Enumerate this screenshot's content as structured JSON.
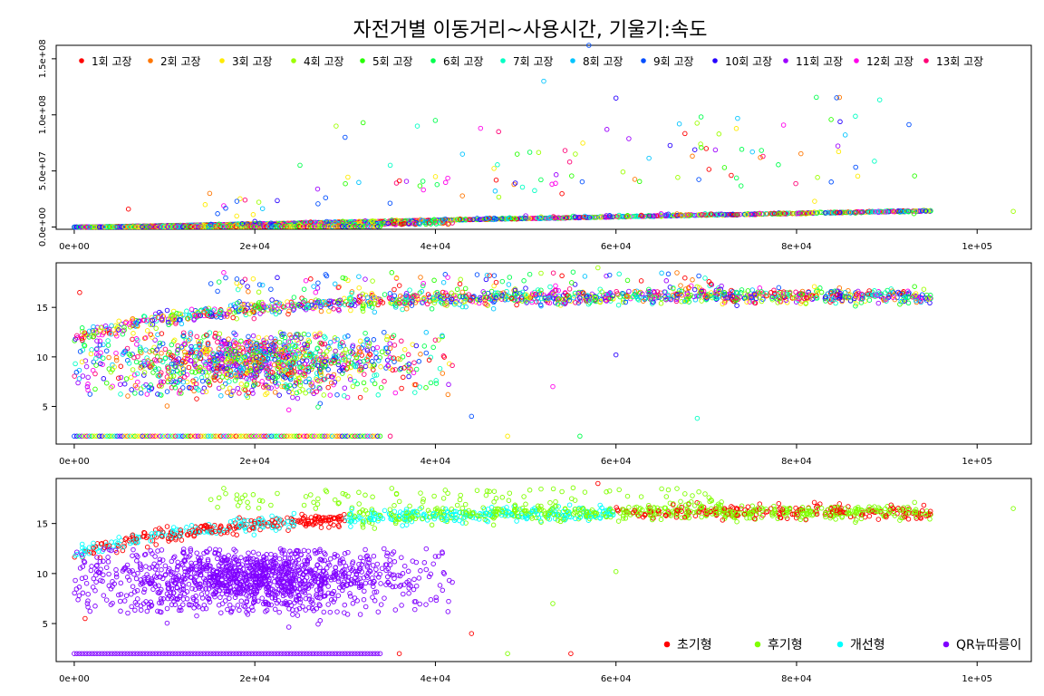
{
  "title": "자전거별 이동거리~사용시간, 기울기:속도",
  "chart_data": [
    {
      "type": "scatter",
      "title": "자전거별 이동거리~사용시간, 기울기:속도",
      "xlabel": "",
      "ylabel": "",
      "xlim": [
        -2000,
        106000
      ],
      "ylim": [
        -2000000,
        162000000
      ],
      "x_ticks": [
        0,
        20000,
        40000,
        60000,
        80000,
        100000
      ],
      "x_tick_labels": [
        "0e+00",
        "2e+04",
        "4e+04",
        "6e+04",
        "8e+04",
        "1e+05"
      ],
      "y_ticks": [
        0,
        50000000,
        100000000,
        150000000
      ],
      "y_tick_labels": [
        "0.0e+00",
        "5.0e+07",
        "1.0e+08",
        "1.5e+08"
      ],
      "legend_position": "top",
      "grid": false,
      "series": [
        {
          "name": "1회 고장",
          "color": "#FF0000"
        },
        {
          "name": "2회 고장",
          "color": "#FF7600"
        },
        {
          "name": "3회 고장",
          "color": "#FFEB00"
        },
        {
          "name": "4회 고장",
          "color": "#9DFF00"
        },
        {
          "name": "5회 고장",
          "color": "#27FF00"
        },
        {
          "name": "6회 고장",
          "color": "#00FF4E"
        },
        {
          "name": "7회 고장",
          "color": "#00FFC4"
        },
        {
          "name": "8회 고장",
          "color": "#00C4FF"
        },
        {
          "name": "9회 고장",
          "color": "#004EFF"
        },
        {
          "name": "10회 고장",
          "color": "#2700FF"
        },
        {
          "name": "11회 고장",
          "color": "#9D00FF"
        },
        {
          "name": "12회 고장",
          "color": "#FF00EB"
        },
        {
          "name": "13회 고장",
          "color": "#FF0076"
        }
      ],
      "sample_points": [
        [
          6000,
          16000000
        ],
        [
          15000,
          30000000
        ],
        [
          14500,
          20000000
        ],
        [
          29000,
          90000000
        ],
        [
          32000,
          93000000
        ],
        [
          40000,
          95000000
        ],
        [
          38000,
          90000000
        ],
        [
          52000,
          130000000
        ],
        [
          57000,
          162000000
        ],
        [
          60000,
          115000000
        ],
        [
          59000,
          87000000
        ],
        [
          45000,
          88000000
        ],
        [
          47000,
          85000000
        ],
        [
          70000,
          70000000
        ],
        [
          76000,
          62000000
        ],
        [
          82000,
          23000000
        ],
        [
          104000,
          14000000
        ],
        [
          93000,
          12000000
        ],
        [
          25000,
          55000000
        ],
        [
          35000,
          55000000
        ],
        [
          43000,
          65000000
        ],
        [
          30000,
          80000000
        ],
        [
          20000,
          5000000
        ],
        [
          50000,
          10000000
        ],
        [
          65000,
          12000000
        ]
      ]
    },
    {
      "type": "scatter",
      "xlabel": "",
      "ylabel": "",
      "xlim": [
        -2000,
        106000
      ],
      "ylim": [
        1.2,
        19.5
      ],
      "x_ticks": [
        0,
        20000,
        40000,
        60000,
        80000,
        100000
      ],
      "x_tick_labels": [
        "0e+00",
        "2e+04",
        "4e+04",
        "6e+04",
        "8e+04",
        "1e+05"
      ],
      "y_ticks": [
        5,
        10,
        15
      ],
      "y_tick_labels": [
        "5",
        "10",
        "15"
      ],
      "grid": false,
      "series_source": "same as panel 1 (1회 고장 … 13회 고장)",
      "notable_points": [
        [
          600,
          16.5
        ],
        [
          58000,
          19.0
        ],
        [
          69000,
          3.8
        ],
        [
          60000,
          10.2
        ],
        [
          35000,
          2.0
        ],
        [
          48000,
          2.0
        ],
        [
          56000,
          2.0
        ],
        [
          44000,
          4.0
        ],
        [
          53000,
          7.0
        ]
      ],
      "floor_band": {
        "x_from": 0,
        "x_to": 34000,
        "y": 2.0
      }
    },
    {
      "type": "scatter",
      "xlabel": "",
      "ylabel": "",
      "xlim": [
        -2000,
        106000
      ],
      "ylim": [
        1.2,
        19.5
      ],
      "x_ticks": [
        0,
        20000,
        40000,
        60000,
        80000,
        100000
      ],
      "x_tick_labels": [
        "0e+00",
        "2e+04",
        "4e+04",
        "6e+04",
        "8e+04",
        "1e+05"
      ],
      "y_ticks": [
        5,
        10,
        15
      ],
      "y_tick_labels": [
        "5",
        "10",
        "15"
      ],
      "legend_position": "bottom-right",
      "grid": false,
      "series": [
        {
          "name": "초기형",
          "color": "#FF0000"
        },
        {
          "name": "후기형",
          "color": "#80FF00"
        },
        {
          "name": "개선형",
          "color": "#00FFFF"
        },
        {
          "name": "QR뉴따릉이",
          "color": "#8000FF"
        }
      ],
      "notable_points": [
        [
          58000,
          19.0
        ],
        [
          104000,
          16.5
        ],
        [
          44000,
          4.0
        ],
        [
          60000,
          10.2
        ],
        [
          36000,
          2.0
        ],
        [
          48000,
          2.0
        ],
        [
          55000,
          2.0
        ],
        [
          53000,
          7.0
        ],
        [
          1200,
          5.5
        ]
      ],
      "floor_band": {
        "x_from": 0,
        "x_to": 34000,
        "y": 2.0
      }
    }
  ]
}
